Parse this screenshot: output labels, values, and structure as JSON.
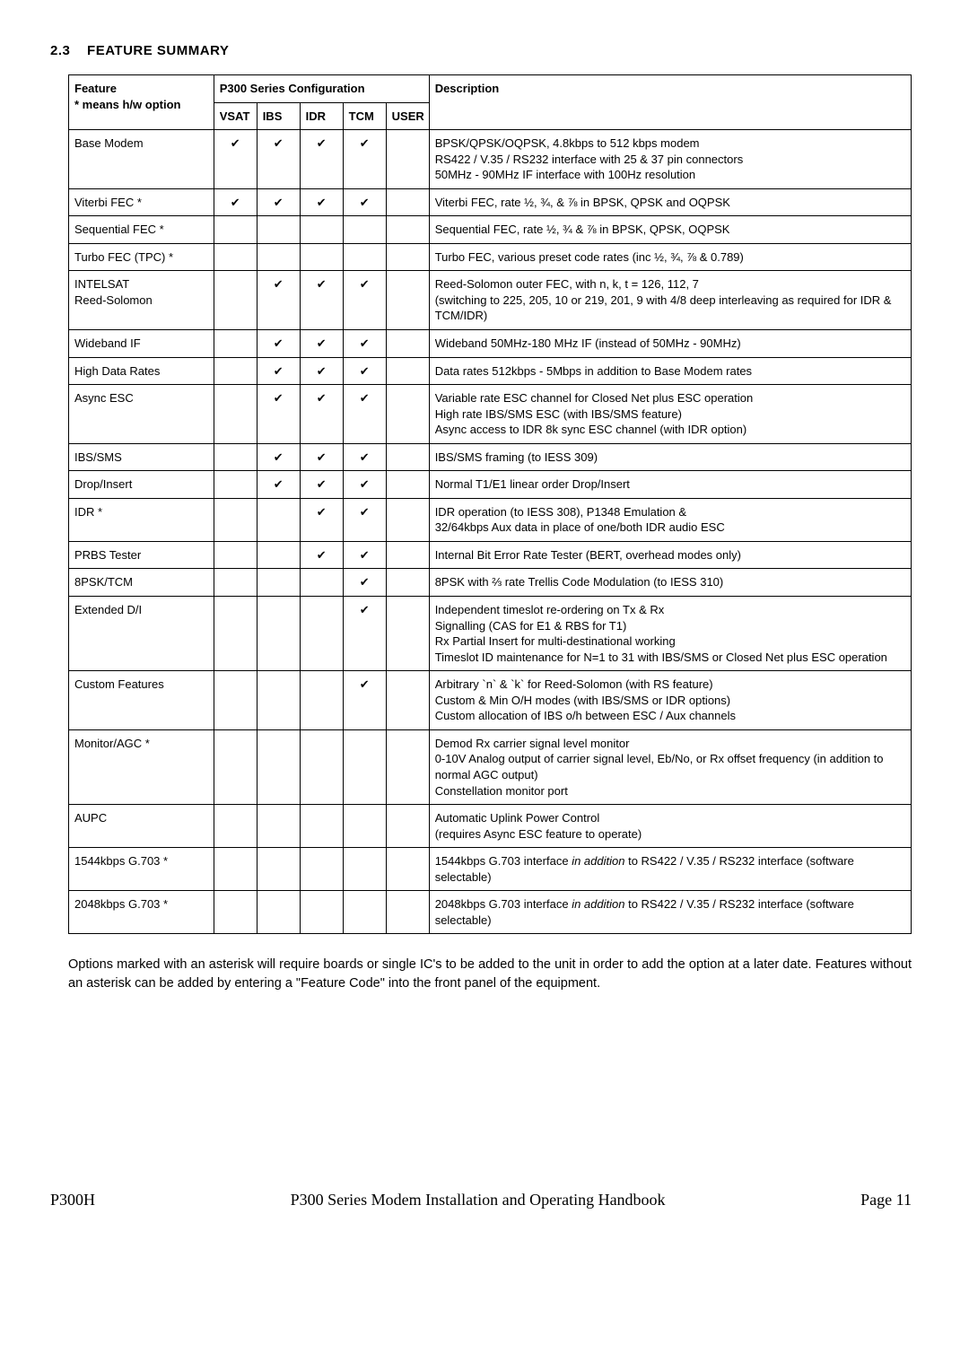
{
  "section": {
    "number": "2.3",
    "title": "FEATURE SUMMARY"
  },
  "glyphs": {
    "tick": "✔"
  },
  "header": {
    "feature_line1": "Feature",
    "feature_line2": "* means h/w option",
    "config_group": "P300 Series Configuration",
    "vsat": "VSAT",
    "ibs": "IBS",
    "idr": "IDR",
    "tcm": "TCM",
    "user": "USER",
    "description": "Description"
  },
  "rows": {
    "r0": {
      "feature": "Base Modem",
      "vsat": true,
      "ibs": true,
      "idr": true,
      "tcm": true,
      "user": false,
      "desc": "BPSK/QPSK/OQPSK, 4.8kbps to 512 kbps modem\nRS422 / V.35 / RS232 interface with 25 & 37 pin connectors\n50MHz - 90MHz IF interface with 100Hz resolution"
    },
    "r1": {
      "feature": "Viterbi FEC *",
      "vsat": true,
      "ibs": true,
      "idr": true,
      "tcm": true,
      "user": false,
      "desc": "Viterbi FEC, rate ½, ¾, & ⅞ in BPSK, QPSK and OQPSK"
    },
    "r2": {
      "feature": "Sequential FEC *",
      "vsat": false,
      "ibs": false,
      "idr": false,
      "tcm": false,
      "user": false,
      "desc": "Sequential FEC, rate ½, ¾ & ⅞  in BPSK, QPSK, OQPSK"
    },
    "r3": {
      "feature": "Turbo FEC (TPC) *",
      "vsat": false,
      "ibs": false,
      "idr": false,
      "tcm": false,
      "user": false,
      "desc": "Turbo FEC, various preset code rates (inc ½, ¾, ⅞ & 0.789)"
    },
    "r4": {
      "feature": "INTELSAT\nReed-Solomon",
      "vsat": false,
      "ibs": true,
      "idr": true,
      "tcm": true,
      "user": false,
      "desc": "Reed-Solomon outer FEC, with n, k, t = 126, 112, 7\n(switching to 225, 205, 10 or 219, 201, 9 with 4/8 deep interleaving as required for IDR & TCM/IDR)"
    },
    "r5": {
      "feature": "Wideband IF",
      "vsat": false,
      "ibs": true,
      "idr": true,
      "tcm": true,
      "user": false,
      "desc": "Wideband 50MHz-180 MHz IF (instead of 50MHz - 90MHz)"
    },
    "r6": {
      "feature": "High Data Rates",
      "vsat": false,
      "ibs": true,
      "idr": true,
      "tcm": true,
      "user": false,
      "desc": "Data rates 512kbps - 5Mbps in addition to Base Modem rates"
    },
    "r7": {
      "feature": "Async ESC",
      "vsat": false,
      "ibs": true,
      "idr": true,
      "tcm": true,
      "user": false,
      "desc": "Variable rate ESC channel for Closed Net plus ESC operation\nHigh rate IBS/SMS ESC (with IBS/SMS feature)\nAsync access to IDR 8k sync ESC channel (with IDR option)"
    },
    "r8": {
      "feature": "IBS/SMS",
      "vsat": false,
      "ibs": true,
      "idr": true,
      "tcm": true,
      "user": false,
      "desc": "IBS/SMS framing (to IESS 309)"
    },
    "r9": {
      "feature": "Drop/Insert",
      "vsat": false,
      "ibs": true,
      "idr": true,
      "tcm": true,
      "user": false,
      "desc": "Normal T1/E1 linear order Drop/Insert"
    },
    "r10": {
      "feature": "IDR *",
      "vsat": false,
      "ibs": false,
      "idr": true,
      "tcm": true,
      "user": false,
      "desc": "IDR operation (to IESS 308), P1348 Emulation &\n32/64kbps Aux data in place of one/both IDR audio ESC"
    },
    "r11": {
      "feature": "PRBS Tester",
      "vsat": false,
      "ibs": false,
      "idr": true,
      "tcm": true,
      "user": false,
      "desc": "Internal Bit Error Rate Tester (BERT, overhead modes only)"
    },
    "r12": {
      "feature": "8PSK/TCM",
      "vsat": false,
      "ibs": false,
      "idr": false,
      "tcm": true,
      "user": false,
      "desc": "8PSK with ⅔ rate Trellis Code Modulation (to  IESS 310)"
    },
    "r13": {
      "feature": "Extended D/I",
      "vsat": false,
      "ibs": false,
      "idr": false,
      "tcm": true,
      "user": false,
      "desc": "Independent timeslot re-ordering on Tx & Rx\nSignalling (CAS for E1 & RBS for T1)\nRx Partial Insert for multi-destinational working\nTimeslot ID maintenance for N=1 to 31 with IBS/SMS or Closed Net plus ESC operation"
    },
    "r14": {
      "feature": "Custom Features",
      "vsat": false,
      "ibs": false,
      "idr": false,
      "tcm": true,
      "user": false,
      "desc": "Arbitrary `n` & `k` for Reed-Solomon (with RS feature)\nCustom & Min O/H modes (with IBS/SMS or IDR options)\nCustom allocation of IBS o/h between ESC / Aux channels"
    },
    "r15": {
      "feature": "Monitor/AGC *",
      "vsat": false,
      "ibs": false,
      "idr": false,
      "tcm": false,
      "user": false,
      "desc": "Demod Rx carrier signal level monitor\n0-10V Analog output of carrier signal level, Eb/No, or Rx offset frequency (in addition to normal AGC output)\nConstellation monitor port"
    },
    "r16": {
      "feature": "AUPC",
      "vsat": false,
      "ibs": false,
      "idr": false,
      "tcm": false,
      "user": false,
      "desc": "Automatic Uplink Power Control\n(requires Async ESC feature to operate)"
    },
    "r17": {
      "feature": "1544kbps G.703 *",
      "vsat": false,
      "ibs": false,
      "idr": false,
      "tcm": false,
      "user": false,
      "desc_pre": "1544kbps G.703 interface ",
      "desc_italic": "in addition",
      "desc_post": " to RS422 / V.35 / RS232 interface (software selectable)"
    },
    "r18": {
      "feature": "2048kbps G.703 *",
      "vsat": false,
      "ibs": false,
      "idr": false,
      "tcm": false,
      "user": false,
      "desc_pre": "2048kbps G.703 interface ",
      "desc_italic": "in addition",
      "desc_post": " to RS422 / V.35 / RS232 interface (software selectable)"
    }
  },
  "below": "Options marked with an asterisk will require boards or single IC's to be added to the unit in order to add the option at a later date. Features without an asterisk can be added by entering a \"Feature Code\" into the front panel of the equipment.",
  "footer": {
    "left": "P300H",
    "center": "P300 Series Modem Installation and Operating Handbook",
    "right": "Page 11"
  }
}
